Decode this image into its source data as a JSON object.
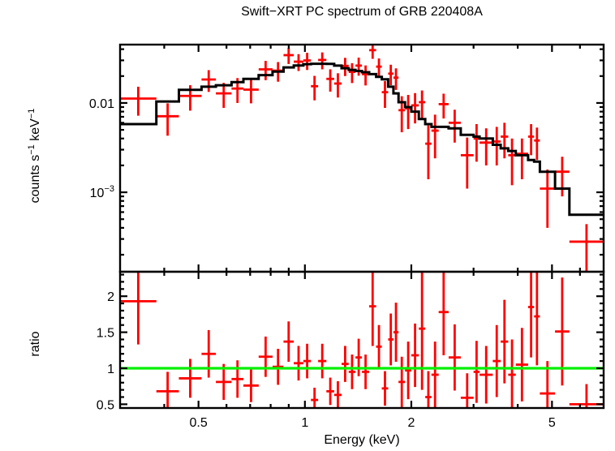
{
  "title": "Swift−XRT PC spectrum of GRB 220408A",
  "colors": {
    "data": "#ff0000",
    "model": "#000000",
    "reference_line": "#00f000",
    "axis": "#000000",
    "background": "#ffffff"
  },
  "chart_data": {
    "type": "scatter",
    "subtype": "x-ray-spectrum-with-ratio",
    "title": "Swift−XRT PC spectrum of GRB 220408A",
    "xlabel": "Energy (keV)",
    "xscale": "log",
    "xlim": [
      0.3,
      7.0
    ],
    "x_major_ticks": [
      0.5,
      1,
      2,
      5
    ],
    "x_tick_labels": [
      "0.5",
      "1",
      "2",
      "5"
    ],
    "x_minor_ticks": [
      0.4,
      0.6,
      0.7,
      0.8,
      0.9,
      3,
      4,
      6
    ],
    "grid": false,
    "legend": "none",
    "columns": [
      "e_lo_keV",
      "e_hi_keV",
      "rate_counts_s_keV",
      "rate_err",
      "model_counts_s_keV",
      "ratio",
      "ratio_err"
    ],
    "bins": [
      [
        0.3,
        0.38,
        0.0112,
        0.004,
        0.0058,
        1.93,
        0.6
      ],
      [
        0.38,
        0.44,
        0.0071,
        0.0028,
        0.0104,
        0.68,
        0.27
      ],
      [
        0.44,
        0.51,
        0.012,
        0.0038,
        0.014,
        0.86,
        0.27
      ],
      [
        0.51,
        0.56,
        0.0183,
        0.005,
        0.0152,
        1.2,
        0.33
      ],
      [
        0.56,
        0.62,
        0.0128,
        0.004,
        0.0158,
        0.81,
        0.25
      ],
      [
        0.62,
        0.67,
        0.0145,
        0.0045,
        0.0171,
        0.85,
        0.26
      ],
      [
        0.67,
        0.74,
        0.0141,
        0.0042,
        0.0186,
        0.76,
        0.23
      ],
      [
        0.74,
        0.81,
        0.0238,
        0.0058,
        0.0205,
        1.16,
        0.28
      ],
      [
        0.81,
        0.87,
        0.023,
        0.0057,
        0.0225,
        1.02,
        0.25
      ],
      [
        0.87,
        0.93,
        0.0343,
        0.007,
        0.025,
        1.37,
        0.28
      ],
      [
        0.93,
        0.99,
        0.029,
        0.0062,
        0.0263,
        1.07,
        0.24
      ],
      [
        0.99,
        1.04,
        0.0299,
        0.0065,
        0.0272,
        1.1,
        0.24
      ],
      [
        1.04,
        1.09,
        0.0154,
        0.0047,
        0.0275,
        0.56,
        0.17
      ],
      [
        1.09,
        1.15,
        0.0303,
        0.0065,
        0.0275,
        1.1,
        0.24
      ],
      [
        1.15,
        1.21,
        0.0186,
        0.0052,
        0.0274,
        0.68,
        0.19
      ],
      [
        1.21,
        1.27,
        0.0165,
        0.005,
        0.0262,
        0.63,
        0.19
      ],
      [
        1.27,
        1.33,
        0.026,
        0.006,
        0.0245,
        1.06,
        0.25
      ],
      [
        1.33,
        1.39,
        0.0223,
        0.0056,
        0.0235,
        0.95,
        0.24
      ],
      [
        1.39,
        1.45,
        0.0262,
        0.006,
        0.0228,
        1.15,
        0.26
      ],
      [
        1.45,
        1.52,
        0.021,
        0.0053,
        0.0221,
        0.95,
        0.24
      ],
      [
        1.52,
        1.59,
        0.039,
        0.0078,
        0.021,
        1.86,
        0.55
      ],
      [
        1.59,
        1.65,
        0.0255,
        0.006,
        0.0196,
        1.3,
        0.3
      ],
      [
        1.65,
        1.72,
        0.0132,
        0.0044,
        0.0184,
        0.72,
        0.24
      ],
      [
        1.72,
        1.78,
        0.0213,
        0.0055,
        0.0152,
        1.4,
        0.36
      ],
      [
        1.78,
        1.84,
        0.0192,
        0.0052,
        0.0128,
        1.5,
        0.41
      ],
      [
        1.84,
        1.92,
        0.0083,
        0.0036,
        0.0102,
        0.81,
        0.35
      ],
      [
        1.92,
        2.0,
        0.0087,
        0.0036,
        0.009,
        0.97,
        0.4
      ],
      [
        2.0,
        2.1,
        0.0094,
        0.0035,
        0.008,
        1.18,
        0.44
      ],
      [
        2.1,
        2.19,
        0.0102,
        0.0036,
        0.0066,
        1.55,
        0.85
      ],
      [
        2.19,
        2.28,
        0.0035,
        0.0021,
        0.0058,
        0.6,
        0.36
      ],
      [
        2.28,
        2.39,
        0.0049,
        0.0025,
        0.0054,
        0.91,
        0.46
      ],
      [
        2.39,
        2.55,
        0.0097,
        0.003,
        0.0054,
        1.78,
        0.6
      ],
      [
        2.55,
        2.76,
        0.006,
        0.0024,
        0.0052,
        1.15,
        0.46
      ],
      [
        2.76,
        3.0,
        0.0026,
        0.0015,
        0.0044,
        0.59,
        0.34
      ],
      [
        3.0,
        3.12,
        0.004,
        0.0018,
        0.0042,
        0.95,
        0.43
      ],
      [
        3.12,
        3.4,
        0.0036,
        0.0016,
        0.004,
        0.91,
        0.4
      ],
      [
        3.4,
        3.58,
        0.0037,
        0.0017,
        0.0034,
        1.1,
        0.5
      ],
      [
        3.58,
        3.76,
        0.0042,
        0.0018,
        0.0031,
        1.37,
        0.58
      ],
      [
        3.76,
        3.95,
        0.0026,
        0.0014,
        0.0029,
        0.91,
        0.49
      ],
      [
        3.95,
        4.28,
        0.0027,
        0.0013,
        0.0026,
        1.05,
        0.51
      ],
      [
        4.28,
        4.45,
        0.0042,
        0.0016,
        0.0023,
        1.85,
        0.7
      ],
      [
        4.45,
        4.62,
        0.0038,
        0.0015,
        0.0022,
        1.72,
        0.68
      ],
      [
        4.62,
        5.1,
        0.0011,
        0.0007,
        0.0017,
        0.65,
        0.45
      ],
      [
        5.1,
        5.6,
        0.0017,
        0.0008,
        0.0011,
        1.51,
        0.75
      ],
      [
        5.6,
        7.0,
        0.00028,
        0.00016,
        0.00056,
        0.5,
        0.28
      ]
    ],
    "panels": [
      {
        "name": "spectrum",
        "ylabel": "counts s^-1 keV^-1",
        "ylabel_parts": [
          {
            "text": "counts s"
          },
          {
            "sup": "−1"
          },
          {
            "text": " keV"
          },
          {
            "sup": "−1"
          }
        ],
        "yscale": "log",
        "ylim": [
          0.000129,
          0.045
        ],
        "y_major_ticks": [
          0.01,
          0.001
        ],
        "y_tick_labels": [
          {
            "v": 0.01,
            "text": "0.01"
          },
          {
            "v": 0.001,
            "text": "10",
            "sup": "−3"
          }
        ],
        "series": [
          {
            "name": "data",
            "style": "errorbar-cross",
            "color": "#ff0000"
          },
          {
            "name": "model",
            "style": "step",
            "color": "#000000"
          }
        ]
      },
      {
        "name": "ratio",
        "ylabel": "ratio",
        "yscale": "linear",
        "ylim": [
          0.448,
          2.34
        ],
        "y_major_ticks": [
          0.5,
          1,
          1.5,
          2
        ],
        "y_tick_labels": [
          {
            "v": 2,
            "text": "2"
          },
          {
            "v": 1.5,
            "text": "1.5"
          },
          {
            "v": 1,
            "text": "1"
          },
          {
            "v": 0.5,
            "text": "0.5"
          }
        ],
        "series": [
          {
            "name": "ratio",
            "style": "errorbar-cross",
            "color": "#ff0000"
          },
          {
            "name": "reference-line",
            "style": "hline",
            "y": 1,
            "color": "#00f000"
          }
        ]
      }
    ]
  }
}
